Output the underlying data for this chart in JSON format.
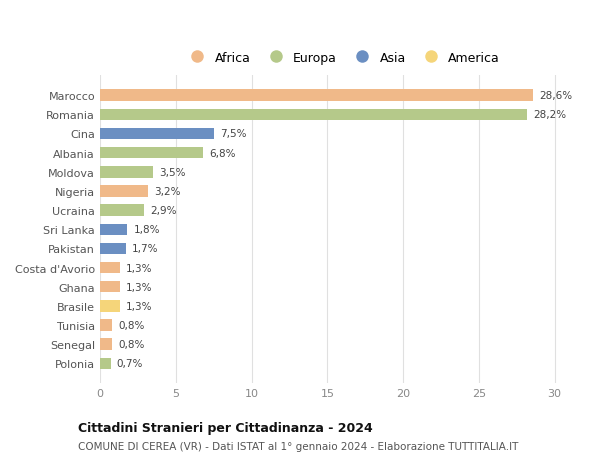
{
  "categories": [
    "Marocco",
    "Romania",
    "Cina",
    "Albania",
    "Moldova",
    "Nigeria",
    "Ucraina",
    "Sri Lanka",
    "Pakistan",
    "Costa d'Avorio",
    "Ghana",
    "Brasile",
    "Tunisia",
    "Senegal",
    "Polonia"
  ],
  "values": [
    28.6,
    28.2,
    7.5,
    6.8,
    3.5,
    3.2,
    2.9,
    1.8,
    1.7,
    1.3,
    1.3,
    1.3,
    0.8,
    0.8,
    0.7
  ],
  "labels": [
    "28,6%",
    "28,2%",
    "7,5%",
    "6,8%",
    "3,5%",
    "3,2%",
    "2,9%",
    "1,8%",
    "1,7%",
    "1,3%",
    "1,3%",
    "1,3%",
    "0,8%",
    "0,8%",
    "0,7%"
  ],
  "colors": [
    "#f0b989",
    "#b5c98a",
    "#6b8fc2",
    "#b5c98a",
    "#b5c98a",
    "#f0b989",
    "#b5c98a",
    "#6b8fc2",
    "#6b8fc2",
    "#f0b989",
    "#f0b989",
    "#f5d57a",
    "#f0b989",
    "#f0b989",
    "#b5c98a"
  ],
  "legend_labels": [
    "Africa",
    "Europa",
    "Asia",
    "America"
  ],
  "legend_colors": [
    "#f0b989",
    "#b5c98a",
    "#6b8fc2",
    "#f5d57a"
  ],
  "title": "Cittadini Stranieri per Cittadinanza - 2024",
  "subtitle": "COMUNE DI CEREA (VR) - Dati ISTAT al 1° gennaio 2024 - Elaborazione TUTTITALIA.IT",
  "xlim": [
    0,
    32
  ],
  "xticks": [
    0,
    5,
    10,
    15,
    20,
    25,
    30
  ],
  "background_color": "#ffffff",
  "grid_color": "#e0e0e0",
  "bar_height": 0.6
}
